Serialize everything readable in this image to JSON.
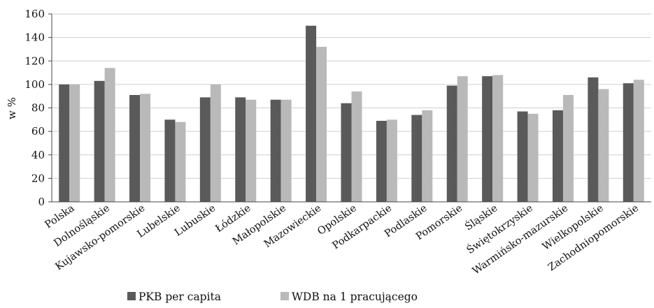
{
  "chart_data": {
    "type": "bar",
    "title": "",
    "xlabel": "",
    "ylabel": "w %",
    "ylim": [
      0,
      160
    ],
    "yticks": [
      0,
      20,
      40,
      60,
      80,
      100,
      120,
      140,
      160
    ],
    "grid": true,
    "legend_position": "bottom",
    "categories": [
      "Polska",
      "Dolnośląskie",
      "Kujawsko-pomorskie",
      "Lubelskie",
      "Lubuskie",
      "Łódzkie",
      "Małopolskie",
      "Mazowieckie",
      "Opolskie",
      "Podkarpackie",
      "Podlaskie",
      "Pomorskie",
      "Śląskie",
      "Świętokrzyskie",
      "Warmińsko-mazurskie",
      "Wielkopolskie",
      "Zachodniopomorskie"
    ],
    "series": [
      {
        "name": "PKB per capita",
        "color": "#5a5a5a",
        "values": [
          100,
          103,
          91,
          70,
          89,
          89,
          87,
          150,
          84,
          69,
          74,
          99,
          107,
          77,
          78,
          106,
          101
        ]
      },
      {
        "name": "WDB na 1 pracującego",
        "color": "#b9b9b9",
        "values": [
          100,
          114,
          92,
          68,
          100,
          87,
          87,
          132,
          94,
          70,
          78,
          107,
          108,
          75,
          91,
          96,
          104
        ]
      }
    ]
  }
}
